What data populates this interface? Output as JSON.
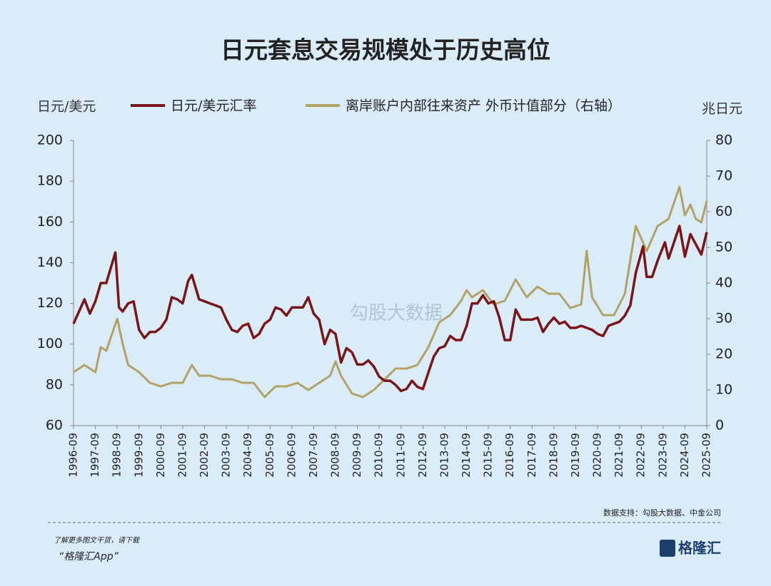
{
  "chart_data": {
    "type": "line",
    "title": "日元套息交易规模处于历史高位",
    "ylabel": "日元/美元",
    "y2label": "兆日元",
    "ylim": [
      60,
      200
    ],
    "yticks": [
      60,
      80,
      100,
      120,
      140,
      160,
      180,
      200
    ],
    "y2lim": [
      0,
      80
    ],
    "y2ticks": [
      0,
      10,
      20,
      30,
      40,
      50,
      60,
      70,
      80
    ],
    "xlim": [
      "1996-09",
      "2025-09"
    ],
    "xticks": [
      "1996-09",
      "1997-09",
      "1998-09",
      "1999-09",
      "2000-09",
      "2001-09",
      "2002-09",
      "2003-09",
      "2004-09",
      "2005-09",
      "2006-09",
      "2007-09",
      "2008-09",
      "2009-09",
      "2010-09",
      "2011-09",
      "2012-09",
      "2013-09",
      "2014-09",
      "2015-09",
      "2016-09",
      "2017-09",
      "2018-09",
      "2019-09",
      "2020-09",
      "2021-09",
      "2022-09",
      "2023-09",
      "2024-09",
      "2025-09"
    ],
    "series": [
      {
        "name": "日元/美元汇率",
        "color": "#7a1518",
        "x": [
          "1996-09",
          "1997-03",
          "1997-06",
          "1997-09",
          "1997-12",
          "1998-03",
          "1998-08",
          "1998-10",
          "1998-12",
          "1999-03",
          "1999-06",
          "1999-09",
          "1999-12",
          "2000-03",
          "2000-06",
          "2000-09",
          "2000-12",
          "2001-03",
          "2001-06",
          "2001-09",
          "2001-12",
          "2002-02",
          "2002-06",
          "2002-09",
          "2002-12",
          "2003-03",
          "2003-06",
          "2003-09",
          "2003-12",
          "2004-03",
          "2004-06",
          "2004-09",
          "2004-12",
          "2005-03",
          "2005-06",
          "2005-09",
          "2005-12",
          "2006-03",
          "2006-06",
          "2006-09",
          "2006-12",
          "2007-03",
          "2007-06",
          "2007-09",
          "2007-12",
          "2008-03",
          "2008-06",
          "2008-09",
          "2008-12",
          "2009-03",
          "2009-06",
          "2009-09",
          "2009-12",
          "2010-03",
          "2010-06",
          "2010-09",
          "2010-12",
          "2011-03",
          "2011-06",
          "2011-09",
          "2011-12",
          "2012-03",
          "2012-06",
          "2012-09",
          "2012-12",
          "2013-03",
          "2013-06",
          "2013-09",
          "2013-12",
          "2014-03",
          "2014-06",
          "2014-09",
          "2014-12",
          "2015-03",
          "2015-06",
          "2015-09",
          "2015-12",
          "2016-03",
          "2016-06",
          "2016-09",
          "2016-12",
          "2017-03",
          "2017-06",
          "2017-09",
          "2017-12",
          "2018-03",
          "2018-06",
          "2018-09",
          "2018-12",
          "2019-03",
          "2019-06",
          "2019-09",
          "2019-12",
          "2020-03",
          "2020-06",
          "2020-09",
          "2020-12",
          "2021-03",
          "2021-06",
          "2021-09",
          "2021-12",
          "2022-03",
          "2022-06",
          "2022-10",
          "2022-12",
          "2023-03",
          "2023-06",
          "2023-10",
          "2023-12",
          "2024-03",
          "2024-06",
          "2024-09",
          "2024-12",
          "2025-03",
          "2025-06",
          "2025-09"
        ],
        "values": [
          110,
          122,
          115,
          121,
          130,
          130,
          145,
          118,
          116,
          120,
          121,
          107,
          103,
          106,
          106,
          108,
          112,
          123,
          122,
          120,
          131,
          134,
          122,
          121,
          120,
          119,
          118,
          112,
          107,
          106,
          109,
          110,
          103,
          105,
          110,
          112,
          118,
          117,
          114,
          118,
          118,
          118,
          123,
          115,
          112,
          100,
          107,
          105,
          91,
          98,
          96,
          90,
          90,
          92,
          89,
          84,
          82,
          82,
          80,
          77,
          78,
          82,
          79,
          78,
          86,
          94,
          98,
          99,
          104,
          102,
          102,
          109,
          120,
          120,
          124,
          120,
          121,
          113,
          102,
          102,
          117,
          112,
          112,
          112,
          113,
          106,
          110,
          113,
          110,
          111,
          108,
          108,
          109,
          108,
          107,
          105,
          104,
          109,
          110,
          111,
          114,
          119,
          135,
          148,
          133,
          133,
          141,
          150,
          142,
          150,
          158,
          143,
          154,
          149,
          144,
          155
        ]
      },
      {
        "name": "离岸账户内部往来资产 外币计值部分（右轴）",
        "color": "#b3a265",
        "axis": "y2",
        "x": [
          "1996-09",
          "1997-03",
          "1997-09",
          "1997-12",
          "1998-03",
          "1998-09",
          "1998-12",
          "1999-03",
          "1999-09",
          "2000-03",
          "2000-09",
          "2001-03",
          "2001-09",
          "2002-02",
          "2002-06",
          "2002-12",
          "2003-06",
          "2003-12",
          "2004-06",
          "2004-12",
          "2005-06",
          "2005-12",
          "2006-06",
          "2006-12",
          "2007-06",
          "2007-12",
          "2008-06",
          "2008-09",
          "2008-12",
          "2009-06",
          "2009-12",
          "2010-06",
          "2010-12",
          "2011-06",
          "2011-12",
          "2012-06",
          "2012-12",
          "2013-06",
          "2013-12",
          "2014-06",
          "2014-09",
          "2014-12",
          "2015-06",
          "2015-12",
          "2016-06",
          "2016-12",
          "2017-06",
          "2017-12",
          "2018-06",
          "2018-12",
          "2019-06",
          "2019-12",
          "2020-03",
          "2020-06",
          "2020-12",
          "2021-06",
          "2021-12",
          "2022-06",
          "2022-12",
          "2023-06",
          "2023-12",
          "2024-06",
          "2024-09",
          "2024-12",
          "2025-03",
          "2025-06",
          "2025-09"
        ],
        "values": [
          15,
          17,
          15,
          22,
          21,
          30,
          23,
          17,
          15,
          12,
          11,
          12,
          12,
          17,
          14,
          14,
          13,
          13,
          12,
          12,
          8,
          11,
          11,
          12,
          10,
          12,
          14,
          18,
          14,
          9,
          8,
          10,
          13,
          16,
          16,
          17,
          22,
          29,
          31,
          35,
          38,
          36,
          38,
          34,
          35,
          41,
          36,
          39,
          37,
          37,
          33,
          34,
          49,
          36,
          31,
          31,
          37,
          56,
          49,
          56,
          58,
          67,
          59,
          62,
          58,
          57,
          63
        ]
      }
    ],
    "source": "数据支持：勾股大数据、中金公司",
    "footer": [
      "了解更多图文干货，请下载",
      "“格隆汇App”"
    ],
    "logo": "格隆汇",
    "watermark": "勾股大数据"
  }
}
